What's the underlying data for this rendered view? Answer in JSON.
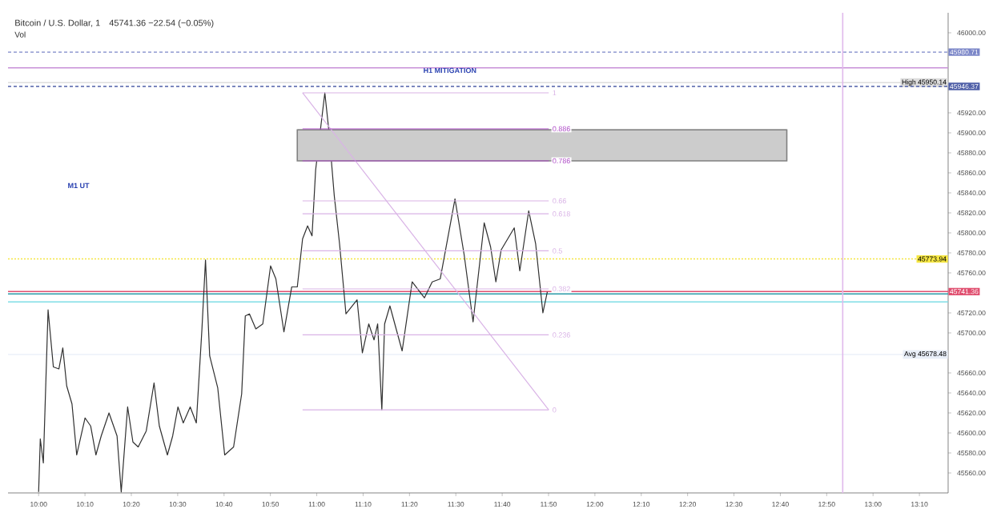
{
  "chart_data": {
    "type": "line",
    "title": "Bitcoin / U.S. Dollar, 1",
    "subtitle": "45741.36 −22.54 (−0.05%)",
    "xlim": [
      9.89,
      13.27
    ],
    "ylim": [
      45540,
      46020
    ],
    "xticks": [
      {
        "value": 10,
        "label": "10:00"
      },
      {
        "value": 10.1667,
        "label": "10:10"
      },
      {
        "value": 10.3333,
        "label": "10:20"
      },
      {
        "value": 10.5,
        "label": "10:30"
      },
      {
        "value": 10.6667,
        "label": "10:40"
      },
      {
        "value": 10.8333,
        "label": "10:50"
      },
      {
        "value": 11,
        "label": "11:00"
      },
      {
        "value": 11.1667,
        "label": "11:10"
      },
      {
        "value": 11.3333,
        "label": "11:20"
      },
      {
        "value": 11.5,
        "label": "11:30"
      },
      {
        "value": 11.6667,
        "label": "11:40"
      },
      {
        "value": 11.8333,
        "label": "11:50"
      },
      {
        "value": 12,
        "label": "12:00"
      },
      {
        "value": 12.1667,
        "label": "12:10"
      },
      {
        "value": 12.3333,
        "label": "12:20"
      },
      {
        "value": 12.5,
        "label": "12:30"
      },
      {
        "value": 12.6667,
        "label": "12:40"
      },
      {
        "value": 12.8333,
        "label": "12:50"
      },
      {
        "value": 13,
        "label": "13:00"
      },
      {
        "value": 13.1667,
        "label": "13:10"
      }
    ],
    "yticks": [
      {
        "value": 45560,
        "label": "45560.00"
      },
      {
        "value": 45580,
        "label": "45580.00"
      },
      {
        "value": 45600,
        "label": "45600.00"
      },
      {
        "value": 45620,
        "label": "45620.00"
      },
      {
        "value": 45640,
        "label": "45640.00"
      },
      {
        "value": 45660,
        "label": "45660.00"
      },
      {
        "value": 45700,
        "label": "45700.00"
      },
      {
        "value": 45720,
        "label": "45720.00"
      },
      {
        "value": 45760,
        "label": "45760.00"
      },
      {
        "value": 45780,
        "label": "45780.00"
      },
      {
        "value": 45800,
        "label": "45800.00"
      },
      {
        "value": 45820,
        "label": "45820.00"
      },
      {
        "value": 45840,
        "label": "45840.00"
      },
      {
        "value": 45860,
        "label": "45860.00"
      },
      {
        "value": 45880,
        "label": "45880.00"
      },
      {
        "value": 45900,
        "label": "45900.00"
      },
      {
        "value": 45920,
        "label": "45920.00"
      },
      {
        "value": 46000,
        "label": "46000.00"
      }
    ],
    "series": [
      {
        "color": "#303030",
        "x": [
          10.0,
          10.006,
          10.017,
          10.034,
          10.053,
          10.073,
          10.087,
          10.101,
          10.12,
          10.137,
          10.167,
          10.187,
          10.206,
          10.225,
          10.253,
          10.282,
          10.297,
          10.32,
          10.339,
          10.358,
          10.387,
          10.415,
          10.434,
          10.463,
          10.482,
          10.501,
          10.52,
          10.545,
          10.567,
          10.587,
          10.6,
          10.615,
          10.644,
          10.669,
          10.701,
          10.73,
          10.743,
          10.758,
          10.781,
          10.806,
          10.834,
          10.853,
          10.882,
          10.91,
          10.93,
          10.949,
          10.967,
          10.983,
          10.996,
          11.029,
          11.044,
          11.063,
          11.082,
          11.105,
          11.145,
          11.164,
          11.187,
          11.206,
          11.219,
          11.234,
          11.244,
          11.263,
          11.307,
          11.343,
          11.387,
          11.415,
          11.444,
          11.497,
          11.53,
          11.562,
          11.602,
          11.625,
          11.644,
          11.663,
          11.71,
          11.73,
          11.762,
          11.787,
          11.813,
          11.829
        ],
        "values": [
          45541,
          45594,
          45570,
          45723,
          45666,
          45664,
          45685,
          45647,
          45629,
          45578,
          45615,
          45607,
          45578,
          45597,
          45620,
          45597,
          45541,
          45626,
          45591,
          45586,
          45602,
          45650,
          45607,
          45578,
          45597,
          45626,
          45610,
          45626,
          45610,
          45703,
          45773,
          45677,
          45645,
          45578,
          45586,
          45639,
          45717,
          45719,
          45704,
          45709,
          45767,
          45754,
          45701,
          45746,
          45746,
          45794,
          45807,
          45797,
          45863,
          45940,
          45901,
          45837,
          45789,
          45719,
          45733,
          45680,
          45709,
          45693,
          45709,
          45623,
          45709,
          45727,
          45682,
          45751,
          45735,
          45751,
          45754,
          45834,
          45778,
          45711,
          45810,
          45786,
          45751,
          45783,
          45805,
          45762,
          45822,
          45789,
          45720,
          45741
        ]
      },
      {
        "color": "#808080",
        "x": [
          10.93,
          12.69
        ],
        "values": [
          45903,
          45903
        ],
        "lower": [
          45872,
          45872
        ],
        "upper": [
          45903,
          45903
        ]
      },
      {
        "color": "#d9b3e6",
        "x": [
          10.949,
          11.834
        ],
        "values": [
          45940,
          45623
        ]
      },
      {
        "name": "1",
        "color": "#d9b3e6",
        "x": [
          10.949,
          11.834
        ],
        "values": [
          45940,
          45940
        ]
      },
      {
        "name": "0.886",
        "color": "#b050c8",
        "x": [
          10.949,
          11.834
        ],
        "values": [
          45904,
          45904
        ]
      },
      {
        "name": "0.786",
        "color": "#b050c8",
        "x": [
          10.949,
          11.834
        ],
        "values": [
          45872,
          45872
        ]
      },
      {
        "name": "0.66",
        "color": "#d9b3e6",
        "x": [
          10.949,
          11.834
        ],
        "values": [
          45832,
          45832
        ]
      },
      {
        "name": "0.618",
        "color": "#d9b3e6",
        "x": [
          10.949,
          11.834
        ],
        "values": [
          45819,
          45819
        ]
      },
      {
        "name": "0.5",
        "color": "#d9b3e6",
        "x": [
          10.949,
          11.834
        ],
        "values": [
          45782,
          45782
        ]
      },
      {
        "name": "0.382",
        "color": "#d9b3e6",
        "x": [
          10.949,
          11.834
        ],
        "values": [
          45744,
          45744
        ]
      },
      {
        "name": "0.236",
        "color": "#d9b3e6",
        "x": [
          10.949,
          11.834
        ],
        "values": [
          45698,
          45698
        ]
      },
      {
        "name": "0",
        "color": "#d9b3e6",
        "x": [
          10.949,
          11.834
        ],
        "values": [
          45623,
          45623
        ]
      }
    ],
    "ref_lines": [
      {
        "axis": "y",
        "value": 45980.71,
        "label": "45980.71",
        "color": "#7b86c8",
        "line_style": "dashed"
      },
      {
        "axis": "y",
        "value": 45965,
        "color": "#c890d8"
      },
      {
        "axis": "y",
        "value": 45950.14,
        "label": "High 45950.14",
        "color": "#dddddd"
      },
      {
        "axis": "y",
        "value": 45946.37,
        "label": "45946.37",
        "color": "#5060a8",
        "line_style": "dashed"
      },
      {
        "axis": "y",
        "value": 45773.94,
        "label": "45773.94",
        "color": "#f5e642",
        "line_style": "dotted"
      },
      {
        "axis": "y",
        "value": 45741.36,
        "label": "45741.36",
        "color": "#e05070"
      },
      {
        "axis": "y",
        "value": 45739,
        "color": "#2a9aa8"
      },
      {
        "axis": "y",
        "value": 45731,
        "color": "#7fdde6"
      },
      {
        "axis": "y",
        "value": 45678.48,
        "label": "Avg 45678.48",
        "color": "#e8eef8"
      },
      {
        "axis": "x",
        "value": 12.891,
        "color": "#e0b8ec"
      }
    ],
    "annotations": [
      "H1 MITIGATION",
      "M1 UT",
      "Vol"
    ]
  }
}
